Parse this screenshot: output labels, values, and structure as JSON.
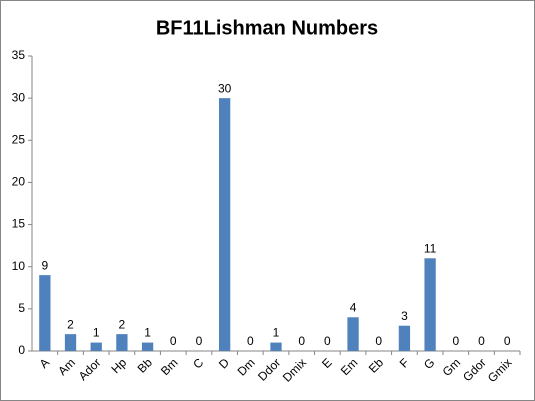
{
  "chart_data": {
    "type": "bar",
    "title": "BF11Lishman Numbers",
    "categories": [
      "A",
      "Am",
      "Ador",
      "Hp",
      "Bb",
      "Bm",
      "C",
      "D",
      "Dm",
      "Ddor",
      "Dmix",
      "E",
      "Em",
      "Eb",
      "F",
      "G",
      "Gm",
      "Gdor",
      "Gmix"
    ],
    "values": [
      9,
      2,
      1,
      2,
      1,
      0,
      0,
      30,
      0,
      1,
      0,
      0,
      4,
      0,
      3,
      11,
      0,
      0,
      0
    ],
    "color": "#4f81bd",
    "ylim": [
      0,
      35
    ],
    "yticks": [
      0,
      5,
      10,
      15,
      20,
      25,
      30,
      35
    ],
    "grid": false,
    "data_labels": true
  }
}
